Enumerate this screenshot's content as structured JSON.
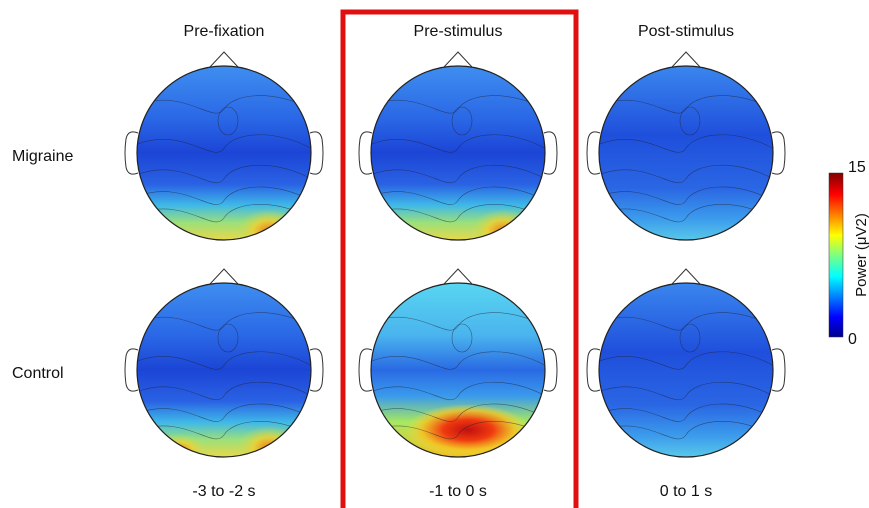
{
  "columns": [
    {
      "title": "Pre-fixation",
      "time": "-3 to -2 s"
    },
    {
      "title": "Pre-stimulus",
      "time": "-1 to 0 s"
    },
    {
      "title": "Post-stimulus",
      "time": "0 to 1 s"
    }
  ],
  "rows": [
    "Migraine",
    "Control"
  ],
  "colorbar": {
    "label": "Power (μV2)",
    "ticks": [
      "15",
      "0"
    ]
  }
}
